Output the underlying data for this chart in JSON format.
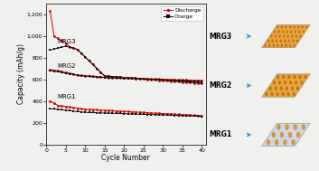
{
  "ylabel": "Capacity (mAh/g)",
  "xlabel": "Cycle Number",
  "ylim": [
    0,
    1300
  ],
  "xlim": [
    0,
    41
  ],
  "yticks": [
    0,
    200,
    400,
    600,
    800,
    1000,
    1200
  ],
  "ytick_labels": [
    "0",
    "200",
    "400",
    "600",
    "800",
    "1,000",
    "1,200"
  ],
  "xticks": [
    0,
    5,
    10,
    15,
    20,
    25,
    30,
    35,
    40
  ],
  "discharge_color": "#d40000",
  "charge_color": "#111111",
  "label_mrg3": "MRG3",
  "label_mrg2": "MRG2",
  "label_mrg1": "MRG1",
  "legend_discharge": "Discharge",
  "legend_charge": "Charge",
  "bg_color": "#f0f0ee",
  "arrow_color": "#3399cc",
  "mrg3_sheet_color": "#e8a030",
  "mrg3_dot_color": "#c07010",
  "mrg2_sheet_color": "#e8a030",
  "mrg2_dot_color": "#c07010",
  "mrg1_sheet_color": "#c8d8e8",
  "mrg1_dot_color": "#e09030"
}
